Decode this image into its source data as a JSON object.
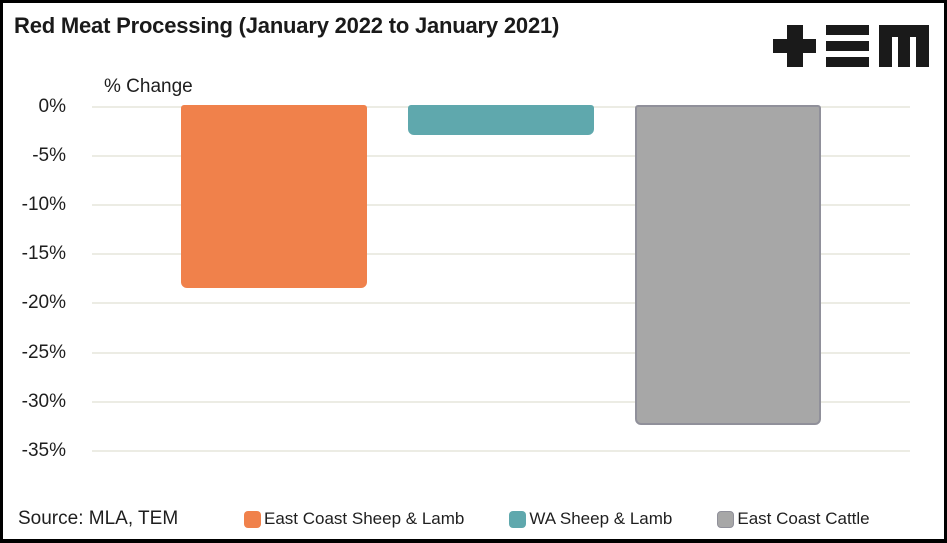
{
  "chart_data": {
    "type": "bar",
    "title": "Red Meat Processing (January 2022 to January 2021)",
    "ylabel": "% Change",
    "categories": [
      "East Coast Sheep & Lamb",
      "WA Sheep & Lamb",
      "East Coast Cattle"
    ],
    "values": [
      -18.4,
      -2.9,
      -32.4
    ],
    "value_unit": "percent",
    "ylim": [
      -35,
      0
    ],
    "yticks": [
      0,
      -5,
      -10,
      -15,
      -20,
      -25,
      -30,
      -35
    ],
    "ytick_labels": [
      "0%",
      "-5%",
      "-10%",
      "-15%",
      "-20%",
      "-25%",
      "-30%",
      "-35%"
    ],
    "grid": true,
    "legend_position": "bottom",
    "colors": {
      "series": [
        "#F0814B",
        "#5FA8AD",
        "#A7A7A7"
      ],
      "bar_borders": [
        null,
        null,
        "#90909A"
      ],
      "gridline": "#ECECE4",
      "text": "#1E1E1E",
      "logo": "#1A1A1A",
      "frame_border": "#000000",
      "background": "#FFFFFF"
    }
  },
  "logo": {
    "name": "TEM"
  },
  "source": {
    "text": "Source: MLA, TEM"
  }
}
